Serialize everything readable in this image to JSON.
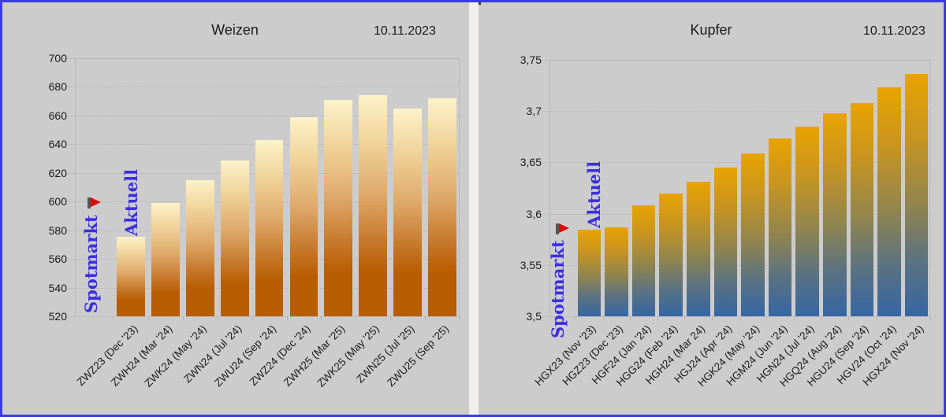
{
  "chart_data": [
    {
      "type": "bar",
      "title": "Weizen",
      "date": "10.11.2023",
      "xlabel": "",
      "ylabel": "",
      "ylim": [
        520,
        700
      ],
      "yticks": [
        "520",
        "540",
        "560",
        "580",
        "600",
        "620",
        "640",
        "660",
        "680",
        "700"
      ],
      "grid": true,
      "categories": [
        "ZWZ23 (Dec '23)",
        "ZWH24 (Mar '24)",
        "ZWK24 (May '24)",
        "ZWN24 (Jul '24)",
        "ZWU24 (Sep '24)",
        "ZWZ24 (Dec '24)",
        "ZWH25 (Mar '25)",
        "ZWK25 (May '25)",
        "ZWN25 (Jul '25)",
        "ZWU25 (Sep '25)"
      ],
      "values": [
        575.5,
        599,
        615,
        628.5,
        643,
        659,
        671,
        674,
        665,
        672
      ],
      "annotations": [
        "Spotmarkt",
        "Aktuell"
      ],
      "colors": {
        "top": "#fdf2c9",
        "bottom": "#b85c00"
      }
    },
    {
      "type": "bar",
      "title": "Kupfer",
      "date": "10.11.2023",
      "xlabel": "",
      "ylabel": "",
      "ylim": [
        3.5,
        3.75
      ],
      "yticks": [
        "3,5",
        "3,55",
        "3,6",
        "3,65",
        "3,7",
        "3,75"
      ],
      "grid": true,
      "categories": [
        "HGX23 (Nov '23)",
        "HGZ23 (Dec '23)",
        "HGF24 (Jan '24)",
        "HGG24 (Feb '24)",
        "HGH24 (Mar 24)",
        "HGJ24 (Apr '24)",
        "HGK24 (May '24)",
        "HGM24 (Jun '24)",
        "HGN24 (Jul '24)",
        "HGQ24 (Aug '24)",
        "HGU24 (Sep '24)",
        "HGV24 (Oct '24)",
        "HGX24 (Nov '24)"
      ],
      "values": [
        3.584,
        3.587,
        3.608,
        3.62,
        3.631,
        3.645,
        3.659,
        3.673,
        3.685,
        3.698,
        3.708,
        3.723,
        3.736
      ],
      "annotations": [
        "Spotmarkt",
        "Aktuell"
      ],
      "colors": {
        "top": "#e8a300",
        "bottom": "#3566a4"
      }
    }
  ],
  "left": {
    "title": "Weizen",
    "date": "10.11.2023",
    "spot_label": "Spotmarkt",
    "current_label": "Aktuell"
  },
  "right": {
    "title": "Kupfer",
    "date": "10.11.2023",
    "spot_label": "Spotmarkt",
    "current_label": "Aktuell"
  }
}
